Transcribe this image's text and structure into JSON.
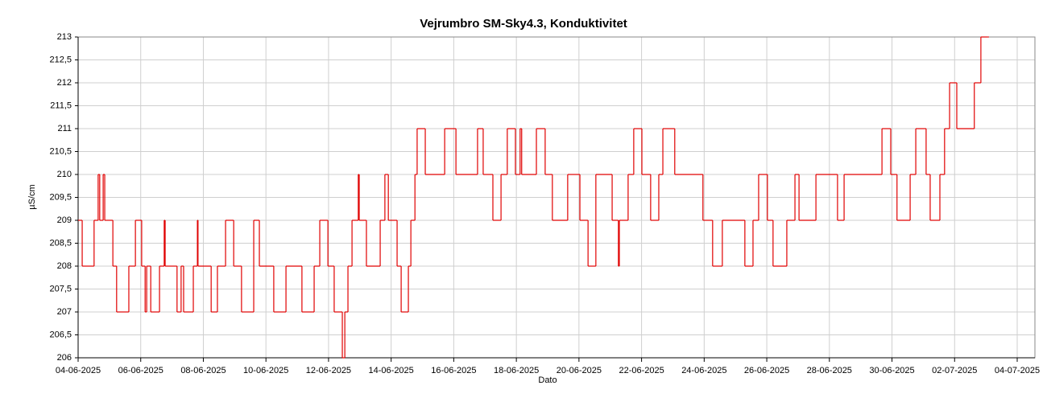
{
  "chart_data": {
    "type": "line",
    "title": "Vejrumbro SM-Sky4.3, Konduktivitet",
    "x_label": "Dato",
    "y_label": "µS/cm",
    "step": true,
    "grid": true,
    "xlim": [
      0,
      30
    ],
    "xticks": [
      {
        "value": 0,
        "label": "04-06-2025"
      },
      {
        "value": 2,
        "label": "06-06-2025"
      },
      {
        "value": 4,
        "label": "08-06-2025"
      },
      {
        "value": 6,
        "label": "10-06-2025"
      },
      {
        "value": 8,
        "label": "12-06-2025"
      },
      {
        "value": 10,
        "label": "14-06-2025"
      },
      {
        "value": 12,
        "label": "16-06-2025"
      },
      {
        "value": 14,
        "label": "18-06-2025"
      },
      {
        "value": 16,
        "label": "20-06-2025"
      },
      {
        "value": 18,
        "label": "22-06-2025"
      },
      {
        "value": 20,
        "label": "24-06-2025"
      },
      {
        "value": 22,
        "label": "26-06-2025"
      },
      {
        "value": 24,
        "label": "28-06-2025"
      },
      {
        "value": 26,
        "label": "30-06-2025"
      },
      {
        "value": 28,
        "label": "02-07-2025"
      },
      {
        "value": 30,
        "label": "04-07-2025"
      }
    ],
    "ylim": [
      206,
      213
    ],
    "yticks": [
      206,
      {
        "value": 206.5,
        "label": "206,5"
      },
      207,
      {
        "value": 207.5,
        "label": "207,5"
      },
      208,
      {
        "value": 208.5,
        "label": "208,5"
      },
      209,
      {
        "value": 209.5,
        "label": "209,5"
      },
      210,
      {
        "value": 210.5,
        "label": "210,5"
      },
      211,
      {
        "value": 211.5,
        "label": "211,5"
      },
      212,
      {
        "value": 212.5,
        "label": "212,5"
      },
      213
    ],
    "series": [
      {
        "name": "Konduktivitet",
        "color": "#e00000",
        "x": [
          0,
          0.13,
          0.51,
          0.64,
          0.69,
          0.8,
          0.85,
          1.11,
          1.23,
          1.62,
          1.83,
          2.03,
          2.14,
          2.19,
          2.32,
          2.6,
          2.75,
          2.78,
          3.16,
          3.29,
          3.37,
          3.68,
          3.81,
          3.83,
          4.25,
          4.45,
          4.71,
          4.97,
          5.22,
          5.61,
          5.79,
          6.25,
          6.64,
          7.15,
          7.54,
          7.72,
          7.98,
          8.18,
          8.44,
          8.52,
          8.62,
          8.75,
          8.95,
          8.98,
          9.21,
          9.65,
          9.8,
          9.91,
          10.19,
          10.32,
          10.55,
          10.63,
          10.76,
          10.83,
          11.09,
          11.71,
          12.07,
          12.76,
          12.94,
          13.25,
          13.51,
          13.71,
          13.97,
          14.12,
          14.17,
          14.64,
          14.92,
          15.15,
          15.64,
          16.03,
          16.29,
          16.54,
          17.06,
          17.26,
          17.29,
          17.57,
          17.75,
          18.01,
          18.29,
          18.55,
          18.68,
          19.06,
          19.96,
          20.27,
          20.58,
          21.3,
          21.56,
          21.74,
          22.02,
          22.2,
          22.64,
          22.9,
          23.03,
          23.57,
          24.26,
          24.47,
          25.68,
          25.96,
          26.16,
          26.58,
          26.76,
          27.09,
          27.22,
          27.53,
          27.68,
          27.84,
          28.07,
          28.63,
          28.84,
          29.07
        ],
        "values": [
          209,
          208,
          209,
          210,
          209,
          210,
          209,
          208,
          207,
          208,
          209,
          208,
          207,
          208,
          207,
          208,
          209,
          208,
          207,
          208,
          207,
          208,
          209,
          208,
          207,
          208,
          209,
          208,
          207,
          209,
          208,
          207,
          208,
          207,
          208,
          209,
          208,
          207,
          206,
          207,
          208,
          209,
          210,
          209,
          208,
          209,
          210,
          209,
          208,
          207,
          208,
          209,
          210,
          211,
          210,
          211,
          210,
          211,
          210,
          209,
          210,
          211,
          210,
          211,
          210,
          211,
          210,
          209,
          210,
          209,
          208,
          210,
          209,
          208,
          209,
          210,
          211,
          210,
          209,
          210,
          211,
          210,
          209,
          208,
          209,
          208,
          209,
          210,
          209,
          208,
          209,
          210,
          209,
          210,
          209,
          210,
          211,
          210,
          209,
          210,
          211,
          210,
          209,
          210,
          211,
          212,
          211,
          212,
          213,
          213
        ]
      }
    ]
  }
}
